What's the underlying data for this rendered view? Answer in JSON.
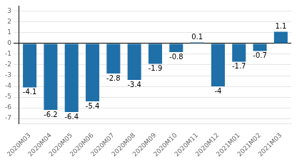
{
  "chart_data": {
    "type": "bar",
    "categories": [
      "2020M03",
      "2020M04",
      "2020M05",
      "2020M06",
      "2020M07",
      "2020M08",
      "2020M09",
      "2020M10",
      "2020M11",
      "2020M12",
      "2021M01",
      "2021M02",
      "2021M03"
    ],
    "values": [
      -4.1,
      -6.2,
      -6.4,
      -5.4,
      -2.8,
      -3.4,
      -1.9,
      -0.8,
      0.1,
      -4.0,
      -1.7,
      -0.7,
      1.1
    ],
    "color": "#1f6fa8",
    "ylim": [
      -7.5,
      3.5
    ],
    "yticks": [
      -7,
      -6,
      -5,
      -4,
      -3,
      -2,
      -1,
      0,
      1,
      2,
      3
    ],
    "grid": true,
    "data_labels": true
  }
}
